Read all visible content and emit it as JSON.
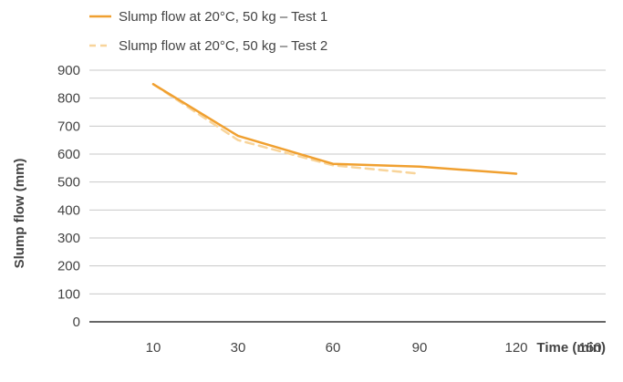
{
  "chart_data": {
    "type": "line",
    "title": "",
    "xlabel": "Time (min)",
    "ylabel": "Slump flow (mm)",
    "categories": [
      "10",
      "30",
      "60",
      "90",
      "120",
      "150"
    ],
    "ylim": [
      0,
      900
    ],
    "yticks": [
      "0",
      "100",
      "200",
      "300",
      "400",
      "500",
      "600",
      "700",
      "800",
      "900"
    ],
    "grid": true,
    "legend_position": "top-left",
    "series": [
      {
        "name": "Slump flow at 20°C, 50 kg – Test 1",
        "style": "solid",
        "color": "#f0a030",
        "x": [
          10,
          30,
          60,
          90,
          120
        ],
        "y": [
          850,
          665,
          565,
          555,
          530
        ]
      },
      {
        "name": "Slump flow at 20°C, 50 kg – Test 2",
        "style": "dashed",
        "color": "#f8d49a",
        "x": [
          10,
          30,
          60,
          90
        ],
        "y": [
          850,
          650,
          560,
          530
        ]
      }
    ]
  }
}
